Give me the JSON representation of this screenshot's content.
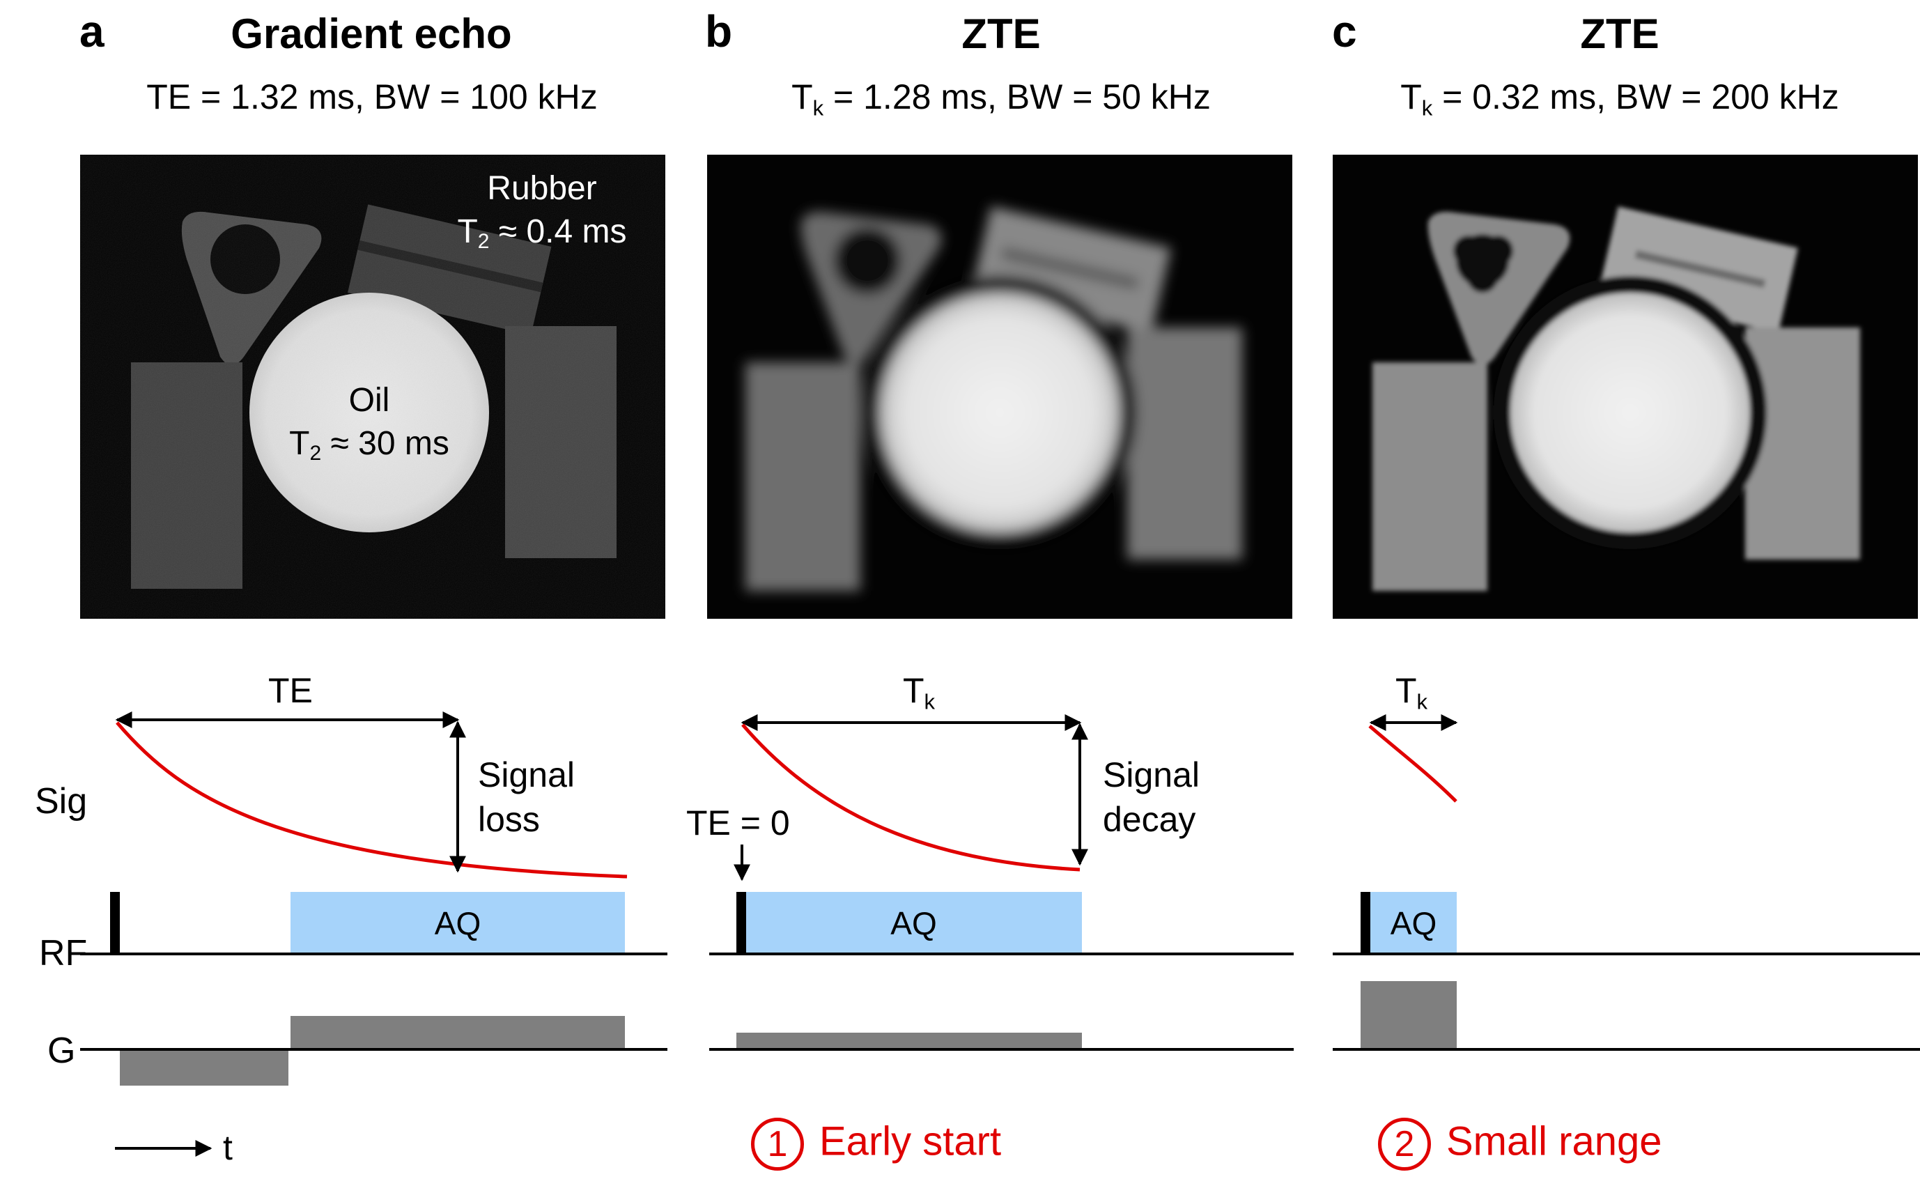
{
  "panels": [
    {
      "letter": "a",
      "title": "Gradient echo",
      "params_main": "TE = 1.32 ms, BW = 100 kHz",
      "image_labels": {
        "rubber": "Rubber",
        "rubber_t2_symbol": "T",
        "rubber_t2_sub": "2",
        "rubber_t2_value": " ≈ 0.4 ms",
        "oil": "Oil",
        "oil_t2_symbol": "T",
        "oil_t2_sub": "2",
        "oil_t2_value": " ≈ 30 ms"
      },
      "timing_label": "TE",
      "signal_label_line1": "Signal",
      "signal_label_line2": "loss",
      "aq_label": "AQ",
      "time_axis_label": "t"
    },
    {
      "letter": "b",
      "title": "ZTE",
      "params_symbol": "T",
      "params_sub": "k",
      "params_rest": " = 1.28 ms, BW = 50 kHz",
      "timing_symbol": "T",
      "timing_sub": "k",
      "te_zero_label": "TE = 0",
      "signal_label_line1": "Signal",
      "signal_label_line2": "decay",
      "aq_label": "AQ",
      "note_number": "1",
      "note_text": "Early start"
    },
    {
      "letter": "c",
      "title": "ZTE",
      "params_symbol": "T",
      "params_sub": "k",
      "params_rest": " = 0.32 ms, BW = 200 kHz",
      "timing_symbol": "T",
      "timing_sub": "k",
      "aq_label": "AQ",
      "note_number": "2",
      "note_text": "Small range"
    }
  ],
  "row_labels": {
    "signal": "Sig",
    "rf": "RF",
    "gradient": "G"
  },
  "colors": {
    "signal_curve": "#e00000",
    "aq_box": "#a6d3fa",
    "gradient": "#7f7f7f",
    "note": "#e00000"
  }
}
